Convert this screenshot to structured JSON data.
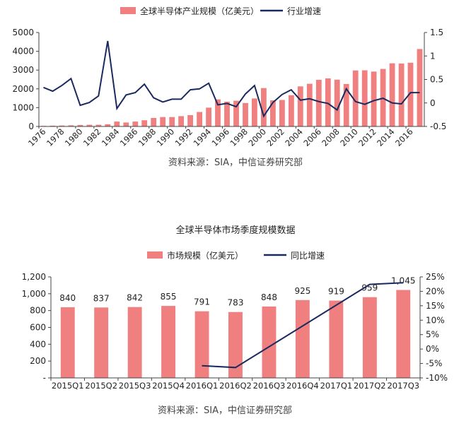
{
  "chart_data": [
    {
      "type": "bar+line",
      "title": "",
      "legend": [
        "全球半导体产业规模（亿美元）",
        "行业增速"
      ],
      "legend_position": "top",
      "colors": {
        "bar": "#f08080",
        "line": "#1b2a5e"
      },
      "xlabel": "",
      "ylabel_left": "",
      "ylabel_right": "",
      "ylim_left": [
        0,
        5000
      ],
      "yticks_left": [
        "0",
        "1000",
        "2000",
        "3000",
        "4000",
        "5000"
      ],
      "ylim_right": [
        -0.5,
        1.5
      ],
      "yticks_right": [
        "-0.5",
        "0",
        "0.5",
        "1",
        "1.5"
      ],
      "xtick_labels": [
        "1976",
        "1978",
        "1980",
        "1982",
        "1984",
        "1986",
        "1988",
        "1990",
        "1992",
        "1994",
        "1996",
        "1998",
        "2000",
        "2002",
        "2004",
        "2006",
        "2008",
        "2010",
        "2012",
        "2014",
        "2016"
      ],
      "x": [
        1976,
        1977,
        1978,
        1979,
        1980,
        1981,
        1982,
        1983,
        1984,
        1985,
        1986,
        1987,
        1988,
        1989,
        1990,
        1991,
        1992,
        1993,
        1994,
        1995,
        1996,
        1997,
        1998,
        1999,
        2000,
        2001,
        2002,
        2003,
        2004,
        2005,
        2006,
        2007,
        2008,
        2009,
        2010,
        2011,
        2012,
        2013,
        2014,
        2015,
        2016,
        2017
      ],
      "series": [
        {
          "name": "全球半导体产业规模（亿美元）",
          "type": "bar",
          "values": [
            30,
            40,
            50,
            60,
            80,
            90,
            90,
            120,
            260,
            210,
            260,
            330,
            450,
            500,
            500,
            550,
            600,
            770,
            1000,
            1440,
            1320,
            1370,
            1250,
            1490,
            2040,
            1390,
            1410,
            1660,
            2130,
            2270,
            2480,
            2560,
            2490,
            2260,
            2980,
            2990,
            2920,
            3060,
            3360,
            3350,
            3390,
            4120
          ]
        },
        {
          "name": "行业增速",
          "type": "line",
          "values": [
            0.33,
            0.25,
            0.37,
            0.52,
            -0.05,
            0.01,
            0.15,
            1.32,
            -0.12,
            0.17,
            0.22,
            0.4,
            0.11,
            0.02,
            0.08,
            0.08,
            0.28,
            0.3,
            0.42,
            -0.04,
            -0.01,
            -0.08,
            0.19,
            0.37,
            -0.28,
            0.01,
            0.18,
            0.28,
            0.06,
            0.09,
            0.03,
            -0.01,
            -0.15,
            0.3,
            0.03,
            -0.03,
            0.05,
            0.1,
            0.0,
            -0.02,
            0.22,
            0.22
          ]
        }
      ]
    },
    {
      "type": "bar+line",
      "title": "全球半导体市场季度规模数据",
      "legend": [
        "市场规模（亿美元）",
        "同比增速"
      ],
      "legend_position": "top",
      "colors": {
        "bar": "#f08080",
        "line": "#1b2a5e"
      },
      "xlabel": "",
      "ylabel_left": "",
      "ylabel_right": "",
      "ylim_left": [
        0,
        1200
      ],
      "yticks_left": [
        "-",
        "200",
        "400",
        "600",
        "800",
        "1,000",
        "1,200"
      ],
      "ylim_right": [
        -10,
        25
      ],
      "yticks_right": [
        "-10%",
        "-5%",
        "0%",
        "5%",
        "10%",
        "15%",
        "20%",
        "25%"
      ],
      "categories": [
        "2015Q1",
        "2015Q2",
        "2015Q3",
        "2015Q4",
        "2016Q1",
        "2016Q2",
        "2016Q3",
        "2016Q4",
        "2017Q1",
        "2017Q2",
        "2017Q3"
      ],
      "series": [
        {
          "name": "市场规模（亿美元）",
          "type": "bar",
          "values": [
            840,
            837,
            842,
            855,
            791,
            783,
            848,
            925,
            919,
            959,
            1045
          ],
          "labels": [
            "840",
            "837",
            "842",
            "855",
            "791",
            "783",
            "848",
            "925",
            "919",
            "959",
            "1,045"
          ]
        },
        {
          "name": "同比增速",
          "type": "line",
          "values": [
            null,
            null,
            null,
            null,
            -5.8,
            -6.4,
            null,
            null,
            null,
            22.4,
            23.0
          ]
        }
      ]
    }
  ],
  "sources": {
    "top": "资料来源：SIA，中信证券研究部",
    "bottom": "资料来源：SIA，中信证券研究部"
  }
}
